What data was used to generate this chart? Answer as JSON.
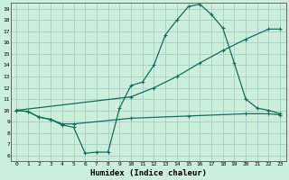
{
  "xlabel": "Humidex (Indice chaleur)",
  "bg_color": "#cceedd",
  "grid_color": "#aacccc",
  "line_color": "#1a6b5a",
  "xlim": [
    -0.5,
    23.5
  ],
  "ylim": [
    5.5,
    19.5
  ],
  "xticks": [
    0,
    1,
    2,
    3,
    4,
    5,
    6,
    7,
    8,
    9,
    10,
    11,
    12,
    13,
    14,
    15,
    16,
    17,
    18,
    19,
    20,
    21,
    22,
    23
  ],
  "yticks": [
    6,
    7,
    8,
    9,
    10,
    11,
    12,
    13,
    14,
    15,
    16,
    17,
    18,
    19
  ],
  "line1_x": [
    0,
    1,
    2,
    3,
    4,
    5,
    6,
    7,
    8,
    9,
    10,
    11,
    12,
    13,
    14,
    15,
    16,
    17,
    18,
    19,
    20,
    21,
    22,
    23
  ],
  "line1_y": [
    10,
    9.9,
    9.4,
    9.2,
    8.7,
    8.5,
    6.2,
    6.3,
    6.3,
    10.2,
    12.2,
    12.5,
    14.0,
    16.7,
    18.0,
    19.2,
    19.4,
    18.5,
    17.3,
    14.2,
    11.0,
    10.2,
    10.0,
    9.7
  ],
  "line2_x": [
    0,
    10,
    12,
    14,
    16,
    18,
    20,
    22,
    23
  ],
  "line2_y": [
    10,
    11.2,
    12.0,
    13.0,
    14.2,
    15.3,
    16.3,
    17.2,
    17.2
  ],
  "line3_x": [
    0,
    1,
    2,
    3,
    4,
    5,
    10,
    15,
    20,
    22,
    23
  ],
  "line3_y": [
    10,
    9.9,
    9.4,
    9.2,
    8.8,
    8.8,
    9.3,
    9.5,
    9.7,
    9.7,
    9.6
  ]
}
